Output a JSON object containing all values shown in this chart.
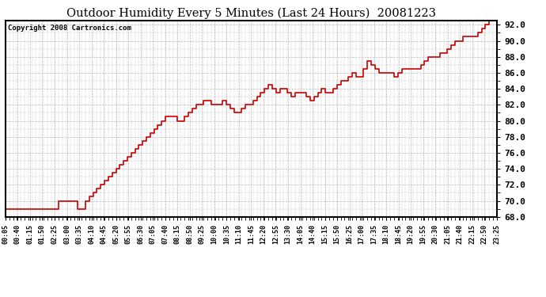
{
  "title": "Outdoor Humidity Every 5 Minutes (Last 24 Hours)  20081223",
  "copyright": "Copyright 2008 Cartronics.com",
  "line_color": "#cc0000",
  "background_color": "#ffffff",
  "plot_bg_color": "#ffffff",
  "grid_color": "#bbbbbb",
  "ylim": [
    68.0,
    92.5
  ],
  "yticks": [
    68.0,
    70.0,
    72.0,
    74.0,
    76.0,
    78.0,
    80.0,
    82.0,
    84.0,
    86.0,
    88.0,
    90.0,
    92.0
  ],
  "xtick_labels": [
    "00:05",
    "00:40",
    "01:15",
    "01:50",
    "02:25",
    "03:00",
    "03:35",
    "04:10",
    "04:45",
    "05:20",
    "05:55",
    "06:30",
    "07:05",
    "07:40",
    "08:15",
    "08:50",
    "09:25",
    "10:00",
    "10:35",
    "11:10",
    "11:45",
    "12:20",
    "12:55",
    "13:30",
    "14:05",
    "14:40",
    "15:15",
    "15:50",
    "16:25",
    "17:00",
    "17:35",
    "18:10",
    "18:45",
    "19:20",
    "19:55",
    "20:30",
    "21:05",
    "21:40",
    "22:15",
    "22:50",
    "23:25"
  ],
  "humidity_values": [
    69.0,
    69.0,
    69.0,
    69.0,
    69.0,
    69.0,
    69.0,
    69.0,
    69.0,
    69.0,
    69.0,
    69.0,
    69.0,
    69.0,
    70.0,
    70.0,
    70.0,
    70.0,
    70.0,
    69.0,
    69.0,
    70.0,
    70.5,
    71.0,
    71.5,
    72.0,
    72.5,
    73.0,
    73.5,
    74.0,
    74.5,
    75.0,
    75.5,
    76.0,
    76.5,
    77.0,
    77.5,
    78.0,
    78.5,
    79.0,
    79.5,
    80.0,
    80.5,
    80.5,
    80.5,
    80.0,
    80.0,
    80.5,
    81.0,
    81.5,
    82.0,
    82.0,
    82.5,
    82.5,
    82.0,
    82.0,
    82.0,
    82.5,
    82.0,
    81.5,
    81.0,
    81.0,
    81.5,
    82.0,
    82.0,
    82.5,
    83.0,
    83.5,
    84.0,
    84.5,
    84.0,
    83.5,
    84.0,
    84.0,
    83.5,
    83.0,
    83.5,
    83.5,
    83.5,
    83.0,
    82.5,
    83.0,
    83.5,
    84.0,
    83.5,
    83.5,
    84.0,
    84.5,
    85.0,
    85.0,
    85.5,
    86.0,
    85.5,
    85.5,
    86.5,
    87.5,
    87.0,
    86.5,
    86.0,
    86.0,
    86.0,
    86.0,
    85.5,
    86.0,
    86.5,
    86.5,
    86.5,
    86.5,
    86.5,
    87.0,
    87.5,
    88.0,
    88.0,
    88.0,
    88.5,
    88.5,
    89.0,
    89.5,
    90.0,
    90.0,
    90.5,
    90.5,
    90.5,
    90.5,
    91.0,
    91.5,
    92.0,
    92.5,
    92.5,
    92.5
  ]
}
